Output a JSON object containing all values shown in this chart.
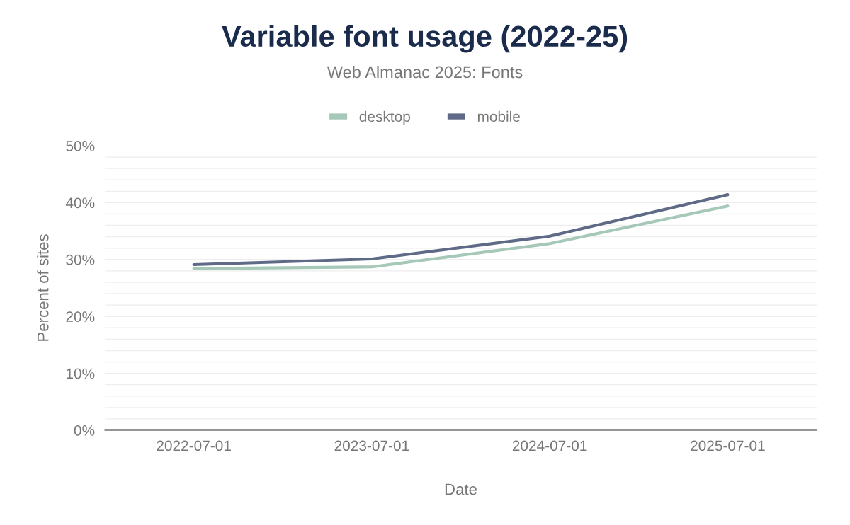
{
  "chart_data": {
    "type": "line",
    "title": "Variable font usage (2022-25)",
    "subtitle": "Web Almanac 2025: Fonts",
    "xlabel": "Date",
    "ylabel": "Percent of sites",
    "categories": [
      "2022-07-01",
      "2023-07-01",
      "2024-07-01",
      "2025-07-01"
    ],
    "series": [
      {
        "name": "desktop",
        "color": "#a6c8b8",
        "values": [
          28.4,
          28.7,
          32.8,
          39.4
        ]
      },
      {
        "name": "mobile",
        "color": "#5f6b86",
        "values": [
          29.1,
          30.1,
          34.1,
          41.4
        ]
      }
    ],
    "ylim": [
      0,
      50
    ],
    "yticks": [
      {
        "value": 0,
        "label": "0%"
      },
      {
        "value": 2,
        "label": null
      },
      {
        "value": 4,
        "label": null
      },
      {
        "value": 6,
        "label": null
      },
      {
        "value": 8,
        "label": null
      },
      {
        "value": 10,
        "label": "10%"
      },
      {
        "value": 12,
        "label": null
      },
      {
        "value": 14,
        "label": null
      },
      {
        "value": 16,
        "label": null
      },
      {
        "value": 18,
        "label": null
      },
      {
        "value": 20,
        "label": "20%"
      },
      {
        "value": 22,
        "label": null
      },
      {
        "value": 24,
        "label": null
      },
      {
        "value": 26,
        "label": null
      },
      {
        "value": 28,
        "label": null
      },
      {
        "value": 30,
        "label": "30%"
      },
      {
        "value": 32,
        "label": null
      },
      {
        "value": 34,
        "label": null
      },
      {
        "value": 36,
        "label": null
      },
      {
        "value": 38,
        "label": null
      },
      {
        "value": 40,
        "label": "40%"
      },
      {
        "value": 42,
        "label": null
      },
      {
        "value": 44,
        "label": null
      },
      {
        "value": 46,
        "label": null
      },
      {
        "value": 48,
        "label": null
      },
      {
        "value": 50,
        "label": "50%"
      }
    ],
    "grid": "y",
    "legend": "top",
    "marker": "none",
    "line_style": "solid"
  }
}
